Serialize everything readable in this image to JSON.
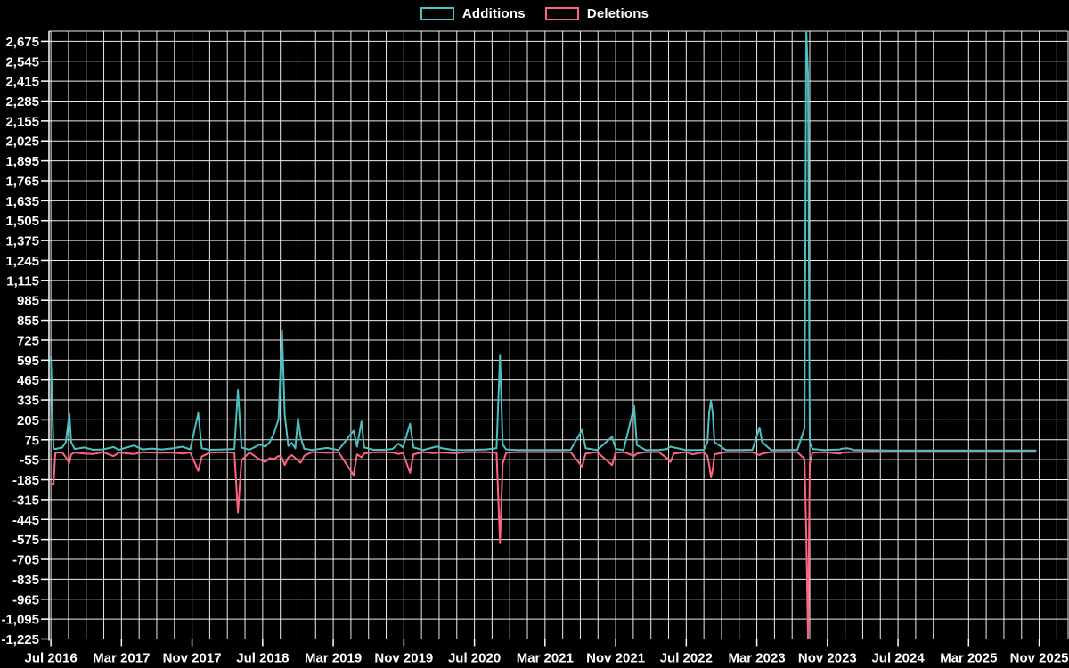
{
  "legend": {
    "items": [
      {
        "label": "Additions"
      },
      {
        "label": "Deletions"
      }
    ]
  },
  "chart_data": {
    "type": "line",
    "title": "",
    "background": "#000000",
    "grid_color": "rgba(255,255,255,0.92)",
    "text_color": "#ffffff",
    "legend_position": "top-center",
    "series": [
      {
        "name": "Additions",
        "color": "#4bc0c0"
      },
      {
        "name": "Deletions",
        "color": "#ff6384"
      }
    ],
    "x_axis": {
      "unit": "months since Jul 2016",
      "labels": [
        "Jul 2016",
        "Mar 2017",
        "Nov 2017",
        "Jul 2018",
        "Mar 2019",
        "Nov 2019",
        "Jul 2020",
        "Mar 2021",
        "Nov 2021",
        "Jul 2022",
        "Mar 2023",
        "Nov 2023",
        "Jul 2024",
        "Mar 2025",
        "Nov 2025"
      ],
      "label_every_months": 8,
      "grid_every_months": 2,
      "total_months": 112
    },
    "y_axis": {
      "min": -1225,
      "max": 2675,
      "step": 130,
      "ticks": [
        2675,
        2545,
        2415,
        2285,
        2155,
        2025,
        1895,
        1765,
        1635,
        1505,
        1375,
        1245,
        1115,
        985,
        855,
        725,
        595,
        465,
        335,
        205,
        75,
        -55,
        -185,
        -315,
        -445,
        -575,
        -705,
        -835,
        -965,
        -1095,
        -1225
      ]
    },
    "points_format": "[month_offset_from_Jul_2016, additions, deletions]",
    "points": [
      [
        0,
        615,
        -210
      ],
      [
        0.3,
        20,
        -215
      ],
      [
        0.5,
        15,
        -10
      ],
      [
        1.3,
        25,
        -8
      ],
      [
        1.7,
        60,
        -40
      ],
      [
        2.1,
        245,
        -75
      ],
      [
        2.3,
        60,
        -20
      ],
      [
        2.7,
        15,
        -8
      ],
      [
        3.8,
        25,
        -15
      ],
      [
        4.8,
        10,
        -18
      ],
      [
        5.9,
        12,
        -5
      ],
      [
        7.1,
        28,
        -32
      ],
      [
        7.7,
        10,
        -8
      ],
      [
        9.4,
        38,
        -18
      ],
      [
        10.4,
        12,
        -6
      ],
      [
        11.4,
        18,
        -8
      ],
      [
        12.6,
        12,
        -10
      ],
      [
        13.9,
        20,
        -8
      ],
      [
        14.9,
        30,
        -15
      ],
      [
        15.8,
        12,
        -8
      ],
      [
        16.7,
        250,
        -128
      ],
      [
        17.1,
        20,
        -35
      ],
      [
        18,
        10,
        -8
      ],
      [
        19.5,
        12,
        -6
      ],
      [
        20.8,
        15,
        -10
      ],
      [
        21.2,
        400,
        -400
      ],
      [
        21.6,
        25,
        -60
      ],
      [
        22.5,
        10,
        -8
      ],
      [
        23.7,
        45,
        -55
      ],
      [
        24.3,
        30,
        -70
      ],
      [
        24.8,
        60,
        -45
      ],
      [
        25.3,
        120,
        -50
      ],
      [
        25.8,
        210,
        -30
      ],
      [
        26.2,
        790,
        -45
      ],
      [
        26.5,
        240,
        -90
      ],
      [
        26.9,
        35,
        -40
      ],
      [
        27.3,
        55,
        -25
      ],
      [
        27.7,
        20,
        -45
      ],
      [
        28,
        215,
        -60
      ],
      [
        28.3,
        95,
        -75
      ],
      [
        28.7,
        18,
        -30
      ],
      [
        29.6,
        8,
        -5
      ],
      [
        31.3,
        22,
        -10
      ],
      [
        32.6,
        8,
        -5
      ],
      [
        34.3,
        135,
        -155
      ],
      [
        34.7,
        30,
        -20
      ],
      [
        35.2,
        195,
        -40
      ],
      [
        35.5,
        25,
        -15
      ],
      [
        36.6,
        10,
        -6
      ],
      [
        37.7,
        10,
        -5
      ],
      [
        38.7,
        15,
        -8
      ],
      [
        39.4,
        50,
        -18
      ],
      [
        39.9,
        25,
        -10
      ],
      [
        40.7,
        180,
        -140
      ],
      [
        41.1,
        25,
        -20
      ],
      [
        42.2,
        8,
        -5
      ],
      [
        43.3,
        25,
        -12
      ],
      [
        43.8,
        32,
        -10
      ],
      [
        44.3,
        20,
        -8
      ],
      [
        45.7,
        8,
        -12
      ],
      [
        47.2,
        8,
        -5
      ],
      [
        49.3,
        12,
        -5
      ],
      [
        50.5,
        20,
        -10
      ],
      [
        50.9,
        625,
        -600
      ],
      [
        51.2,
        45,
        -80
      ],
      [
        51.6,
        12,
        -10
      ],
      [
        52.8,
        8,
        -5
      ],
      [
        54.8,
        8,
        -5
      ],
      [
        56.8,
        8,
        -5
      ],
      [
        58.9,
        10,
        -6
      ],
      [
        60.2,
        140,
        -100
      ],
      [
        60.6,
        20,
        -15
      ],
      [
        61.9,
        8,
        -5
      ],
      [
        63.6,
        95,
        -90
      ],
      [
        64,
        15,
        -10
      ],
      [
        64.9,
        8,
        -5
      ],
      [
        66.1,
        295,
        -30
      ],
      [
        66.4,
        40,
        -15
      ],
      [
        67.4,
        8,
        -5
      ],
      [
        68.9,
        8,
        -5
      ],
      [
        69.8,
        15,
        -45
      ],
      [
        70.2,
        30,
        -70
      ],
      [
        70.6,
        25,
        -15
      ],
      [
        72,
        8,
        -5
      ],
      [
        72.7,
        8,
        -20
      ],
      [
        74,
        10,
        -6
      ],
      [
        74.4,
        60,
        -30
      ],
      [
        74.6,
        255,
        -90
      ],
      [
        74.8,
        330,
        -170
      ],
      [
        75,
        250,
        -120
      ],
      [
        75.2,
        60,
        -20
      ],
      [
        76.5,
        8,
        -5
      ],
      [
        78,
        8,
        -5
      ],
      [
        79.5,
        10,
        -6
      ],
      [
        80.3,
        155,
        -25
      ],
      [
        80.6,
        60,
        -15
      ],
      [
        81.6,
        8,
        -5
      ],
      [
        83.1,
        8,
        -5
      ],
      [
        84.6,
        10,
        -5
      ],
      [
        85.4,
        150,
        -50
      ],
      [
        85.6,
        2745,
        -550
      ],
      [
        85.8,
        2460,
        -1220
      ],
      [
        86,
        60,
        -80
      ],
      [
        86.3,
        15,
        -10
      ],
      [
        87.6,
        8,
        -5
      ],
      [
        89.4,
        12,
        -15
      ],
      [
        89.7,
        18,
        -8
      ],
      [
        90.3,
        20,
        -6
      ],
      [
        91.1,
        8,
        -5
      ],
      [
        95.2,
        6,
        -4
      ],
      [
        100.2,
        6,
        -4
      ],
      [
        105.3,
        6,
        -4
      ],
      [
        109.3,
        6,
        -4
      ],
      [
        111.6,
        5,
        -3
      ]
    ]
  }
}
